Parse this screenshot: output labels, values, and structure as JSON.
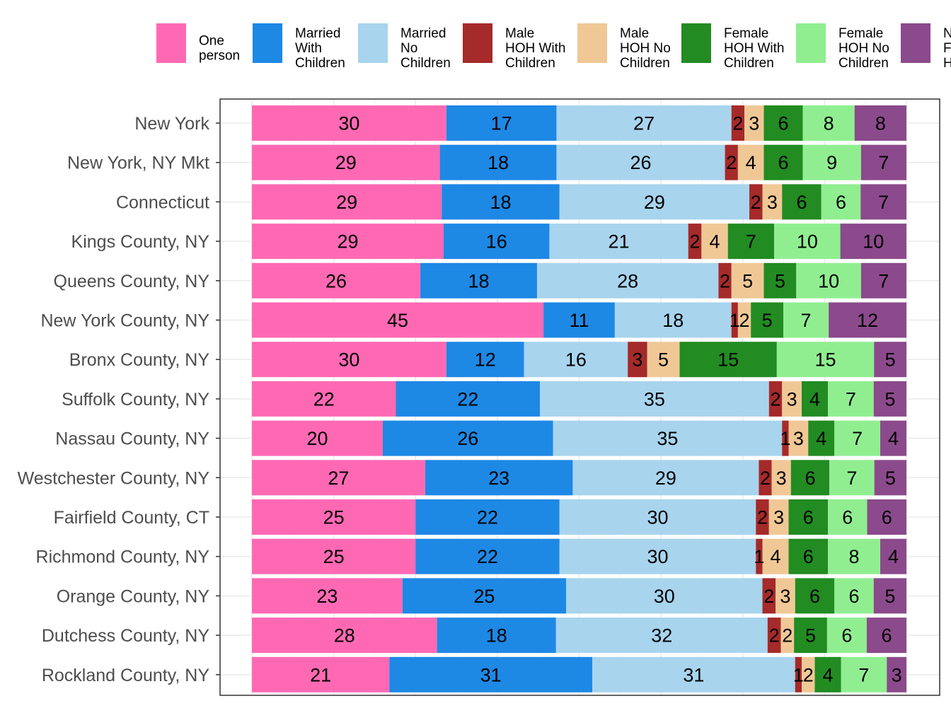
{
  "chart_data": {
    "type": "bar",
    "orientation": "horizontal",
    "stacked": true,
    "normalized": true,
    "grid": true,
    "legend_position": "top",
    "title": "",
    "xlabel": "",
    "ylabel": "",
    "xlim": [
      0,
      100
    ],
    "categories": [
      "New York",
      "New York, NY Mkt",
      "Connecticut",
      "Kings County, NY",
      "Queens County, NY",
      "New York County, NY",
      "Bronx County, NY",
      "Suffolk County, NY",
      "Nassau County, NY",
      "Westchester County, NY",
      "Fairfield County, CT",
      "Richmond County, NY",
      "Orange County, NY",
      "Dutchess County, NY",
      "Rockland County, NY"
    ],
    "series": [
      {
        "name": "One person",
        "legend_lines": [
          "One",
          "person"
        ],
        "color": "#ff69b4",
        "values": [
          30,
          29,
          29,
          29,
          26,
          45,
          30,
          22,
          20,
          27,
          25,
          25,
          23,
          28,
          21
        ]
      },
      {
        "name": "Married With Children",
        "legend_lines": [
          "Married",
          "With",
          "Children"
        ],
        "color": "#1e88e5",
        "values": [
          17,
          18,
          18,
          16,
          18,
          11,
          12,
          22,
          26,
          23,
          22,
          22,
          25,
          18,
          31
        ]
      },
      {
        "name": "Married No Children",
        "legend_lines": [
          "Married",
          "No",
          "Children"
        ],
        "color": "#a8d4ee",
        "values": [
          27,
          26,
          29,
          21,
          28,
          18,
          16,
          35,
          35,
          29,
          30,
          30,
          30,
          32,
          31
        ]
      },
      {
        "name": "Male HOH With Children",
        "legend_lines": [
          "Male",
          "HOH With",
          "Children"
        ],
        "color": "#a52a2a",
        "values": [
          2,
          2,
          2,
          2,
          2,
          1,
          3,
          2,
          1,
          2,
          2,
          1,
          2,
          2,
          1
        ]
      },
      {
        "name": "Male HOH No Children",
        "legend_lines": [
          "Male",
          "HOH No",
          "Children"
        ],
        "color": "#f0c896",
        "values": [
          3,
          4,
          3,
          4,
          5,
          2,
          5,
          3,
          3,
          3,
          3,
          4,
          3,
          2,
          2
        ]
      },
      {
        "name": "Female HOH With Children",
        "legend_lines": [
          "Female",
          "HOH With",
          "Children"
        ],
        "color": "#228b22",
        "values": [
          6,
          6,
          6,
          7,
          5,
          5,
          15,
          4,
          4,
          6,
          6,
          6,
          6,
          5,
          4
        ]
      },
      {
        "name": "Female HOH No Children",
        "legend_lines": [
          "Female",
          "HOH No",
          "Children"
        ],
        "color": "#90ee90",
        "values": [
          8,
          9,
          6,
          10,
          10,
          7,
          15,
          7,
          7,
          7,
          6,
          8,
          6,
          6,
          7
        ]
      },
      {
        "name": "N F H",
        "legend_lines": [
          "N",
          "F",
          "H"
        ],
        "color": "#8b4a8b",
        "values": [
          8,
          7,
          7,
          10,
          7,
          12,
          5,
          5,
          4,
          5,
          6,
          4,
          5,
          6,
          3
        ]
      }
    ]
  }
}
